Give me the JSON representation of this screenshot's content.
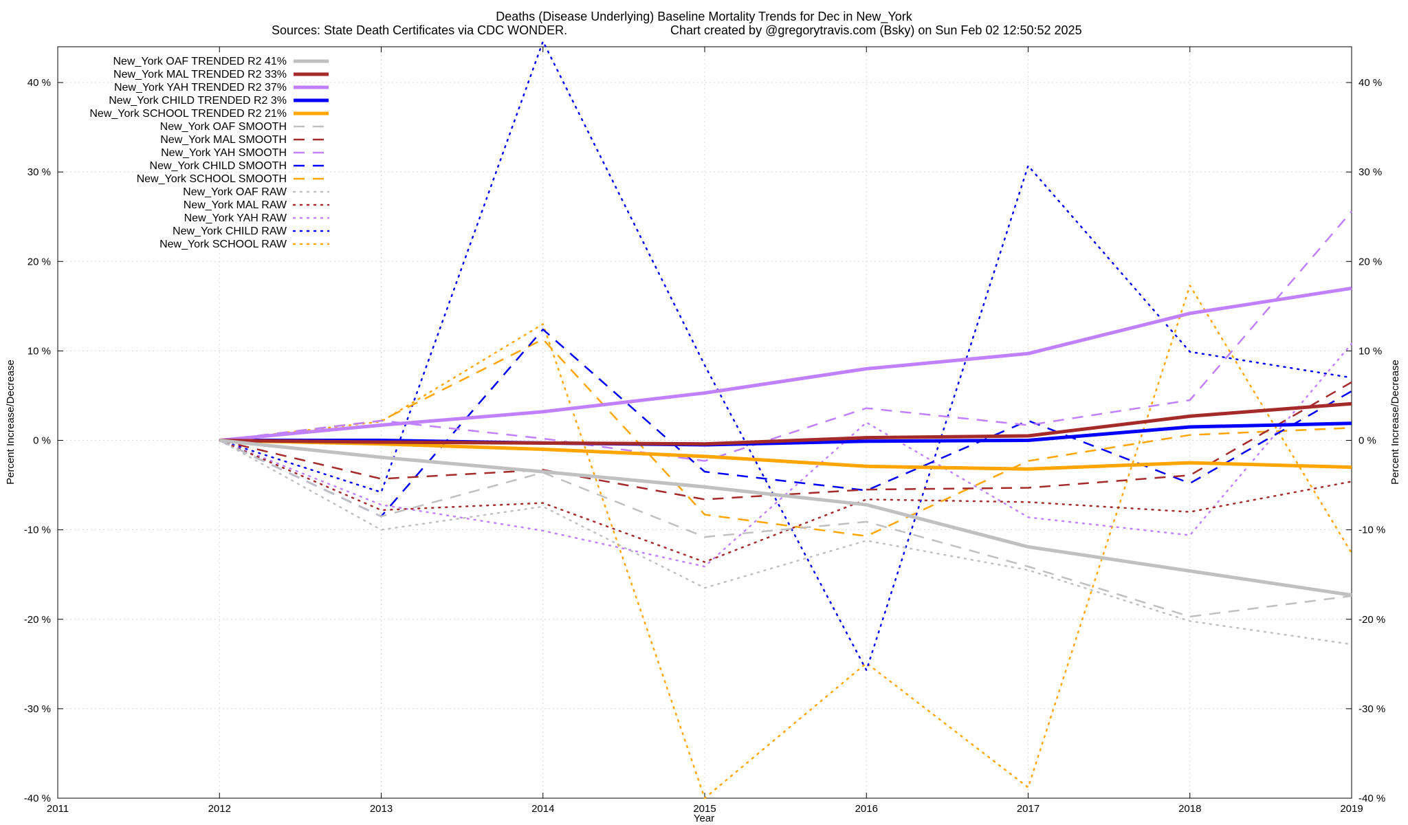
{
  "chart_data": {
    "type": "line",
    "title": "Deaths (Disease Underlying)  Baseline Mortality Trends for Dec in New_York",
    "subtitle_left": "Sources: State Death Certificates via CDC WONDER.",
    "subtitle_right": "Chart created by @gregorytravis.com (Bsky) on Sun Feb 02 12:50:52 2025",
    "xlabel": "Year",
    "ylabel_left": "Percent Increase/Decrease",
    "ylabel_right": "Percent Increase/Decrease",
    "xlim": [
      2011,
      2019
    ],
    "ylim": [
      -40,
      44
    ],
    "x_ticks": [
      2011,
      2012,
      2013,
      2014,
      2015,
      2016,
      2017,
      2018,
      2019
    ],
    "x_tick_labels": [
      "2011",
      "2012",
      "2013",
      "2014",
      "2015",
      "2016",
      "2017",
      "2018",
      "2019"
    ],
    "y_ticks": [
      -40,
      -30,
      -20,
      -10,
      0,
      10,
      20,
      30,
      40
    ],
    "y_tick_labels": [
      "-40 %",
      "-30 %",
      "-20 %",
      "-10 %",
      "0 %",
      "10 %",
      "20 %",
      "30 %",
      "40 %"
    ],
    "grid": true,
    "legend_position": "top-left",
    "series": [
      {
        "name": "New_York OAF TRENDED R2  41%",
        "style": "solid",
        "color": "#c0c0c0",
        "x": [
          2012,
          2013,
          2014,
          2015,
          2016,
          2017,
          2018,
          2019
        ],
        "y": [
          0,
          -1.9,
          -3.5,
          -5.2,
          -7.2,
          -11.9,
          -14.6,
          -17.3
        ]
      },
      {
        "name": "New_York MAL TRENDED R2  33%",
        "style": "solid",
        "color": "#a52a2a",
        "x": [
          2012,
          2013,
          2014,
          2015,
          2016,
          2017,
          2018,
          2019
        ],
        "y": [
          0,
          -0.2,
          -0.3,
          -0.4,
          0.3,
          0.5,
          2.7,
          4.1
        ]
      },
      {
        "name": "New_York YAH TRENDED R2  37%",
        "style": "solid",
        "color": "#c080ff",
        "x": [
          2012,
          2013,
          2014,
          2015,
          2016,
          2017,
          2018,
          2019
        ],
        "y": [
          0,
          1.7,
          3.2,
          5.3,
          8.0,
          9.7,
          14.2,
          17.0
        ]
      },
      {
        "name": "New_York CHILD TRENDED R2   3%",
        "style": "solid",
        "color": "#0000ff",
        "x": [
          2012,
          2013,
          2014,
          2015,
          2016,
          2017,
          2018,
          2019
        ],
        "y": [
          0,
          0.0,
          -0.3,
          -0.5,
          -0.1,
          0.0,
          1.5,
          1.9
        ]
      },
      {
        "name": "New_York SCHOOL TRENDED R2  21%",
        "style": "solid",
        "color": "#ffa500",
        "x": [
          2012,
          2013,
          2014,
          2015,
          2016,
          2017,
          2018,
          2019
        ],
        "y": [
          0,
          -0.4,
          -1.0,
          -1.8,
          -2.9,
          -3.2,
          -2.5,
          -3.0
        ]
      },
      {
        "name": "New_York OAF SMOOTH",
        "style": "dashed",
        "color": "#c0c0c0",
        "x": [
          2012,
          2013,
          2014,
          2015,
          2016,
          2017,
          2018,
          2019
        ],
        "y": [
          0,
          -8.5,
          -3.6,
          -10.8,
          -9.1,
          -14.1,
          -19.7,
          -17.4
        ]
      },
      {
        "name": "New_York MAL SMOOTH",
        "style": "dashed",
        "color": "#a52a2a",
        "x": [
          2012,
          2013,
          2014,
          2015,
          2016,
          2017,
          2018,
          2019
        ],
        "y": [
          0,
          -4.3,
          -3.3,
          -6.6,
          -5.5,
          -5.3,
          -3.9,
          6.5
        ]
      },
      {
        "name": "New_York YAH SMOOTH",
        "style": "dashed",
        "color": "#c080ff",
        "x": [
          2012,
          2013,
          2014,
          2015,
          2016,
          2017,
          2018,
          2019
        ],
        "y": [
          0,
          2.2,
          0.2,
          -2.3,
          3.6,
          1.7,
          4.5,
          25.6
        ]
      },
      {
        "name": "New_York CHILD SMOOTH",
        "style": "dashed",
        "color": "#0000ff",
        "x": [
          2012,
          2013,
          2014,
          2015,
          2016,
          2017,
          2018,
          2019
        ],
        "y": [
          0,
          -8.5,
          12.4,
          -3.5,
          -5.6,
          2.2,
          -4.8,
          5.5
        ]
      },
      {
        "name": "New_York SCHOOL SMOOTH",
        "style": "dashed",
        "color": "#ffa500",
        "x": [
          2012,
          2013,
          2014,
          2015,
          2016,
          2017,
          2018,
          2019
        ],
        "y": [
          0,
          2.2,
          11.3,
          -8.3,
          -10.7,
          -2.3,
          0.6,
          1.4
        ]
      },
      {
        "name": "New_York OAF RAW",
        "style": "dotted",
        "color": "#c0c0c0",
        "x": [
          2012,
          2013,
          2014,
          2015,
          2016,
          2017,
          2018,
          2019
        ],
        "y": [
          0,
          -10.0,
          -7.4,
          -16.5,
          -11.2,
          -14.5,
          -20.2,
          -22.8
        ]
      },
      {
        "name": "New_York MAL RAW",
        "style": "dotted",
        "color": "#a52a2a",
        "x": [
          2012,
          2013,
          2014,
          2015,
          2016,
          2017,
          2018,
          2019
        ],
        "y": [
          0,
          -7.8,
          -7.0,
          -13.6,
          -6.6,
          -6.9,
          -8.0,
          -4.6
        ]
      },
      {
        "name": "New_York YAH RAW",
        "style": "dotted",
        "color": "#c080ff",
        "x": [
          2012,
          2013,
          2014,
          2015,
          2016,
          2017,
          2018,
          2019
        ],
        "y": [
          0,
          -7.2,
          -10.1,
          -14.1,
          2.0,
          -8.6,
          -10.6,
          10.8
        ]
      },
      {
        "name": "New_York CHILD RAW",
        "style": "dotted",
        "color": "#0000ff",
        "x": [
          2012,
          2013,
          2014,
          2015,
          2016,
          2017,
          2018,
          2019
        ],
        "y": [
          0,
          -5.8,
          44.6,
          8.4,
          -25.7,
          30.7,
          9.9,
          7.0
        ]
      },
      {
        "name": "New_York SCHOOL RAW",
        "style": "dotted",
        "color": "#ffa500",
        "x": [
          2012,
          2013,
          2014,
          2015,
          2016,
          2017,
          2018,
          2019
        ],
        "y": [
          0,
          2.1,
          13.0,
          -40.0,
          -24.9,
          -38.8,
          17.3,
          -12.6
        ]
      }
    ]
  }
}
